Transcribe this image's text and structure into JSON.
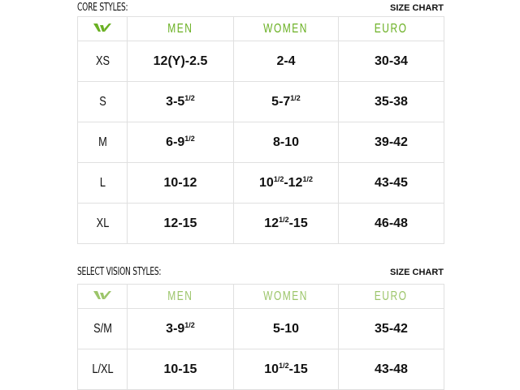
{
  "brand": {
    "logo": "W logo",
    "accent_color": "#6ab023"
  },
  "tables": [
    {
      "title": "CORE STYLES:",
      "chart_label": "SIZE CHART",
      "header_color": "#6ab023",
      "headers": [
        "MEN",
        "WOMEN",
        "EURO"
      ],
      "rows": [
        {
          "size": "XS",
          "men": [
            {
              "t": "12(Y)-2.5"
            }
          ],
          "women": [
            {
              "t": "2-4"
            }
          ],
          "euro": [
            {
              "t": "30-34"
            }
          ]
        },
        {
          "size": "S",
          "men": [
            {
              "t": "3-5"
            },
            {
              "s": "1/2"
            }
          ],
          "women": [
            {
              "t": "5-7"
            },
            {
              "s": "1/2"
            }
          ],
          "euro": [
            {
              "t": "35-38"
            }
          ]
        },
        {
          "size": "M",
          "men": [
            {
              "t": "6-9"
            },
            {
              "s": "1/2"
            }
          ],
          "women": [
            {
              "t": "8-10"
            }
          ],
          "euro": [
            {
              "t": "39-42"
            }
          ]
        },
        {
          "size": "L",
          "men": [
            {
              "t": "10-12"
            }
          ],
          "women": [
            {
              "t": "10"
            },
            {
              "s": "1/2"
            },
            {
              "t": "-12"
            },
            {
              "s": "1/2"
            }
          ],
          "euro": [
            {
              "t": "43-45"
            }
          ]
        },
        {
          "size": "XL",
          "men": [
            {
              "t": "12-15"
            }
          ],
          "women": [
            {
              "t": "12"
            },
            {
              "s": "1/2"
            },
            {
              "t": "-15"
            }
          ],
          "euro": [
            {
              "t": "46-48"
            }
          ]
        }
      ]
    },
    {
      "title": "SELECT VISION STYLES:",
      "chart_label": "SIZE CHART",
      "header_color": "#9cc56a",
      "headers": [
        "MEN",
        "WOMEN",
        "EURO"
      ],
      "rows": [
        {
          "size": "S/M",
          "men": [
            {
              "t": "3-9"
            },
            {
              "s": "1/2"
            }
          ],
          "women": [
            {
              "t": "5-10"
            }
          ],
          "euro": [
            {
              "t": "35-42"
            }
          ]
        },
        {
          "size": "L/XL",
          "men": [
            {
              "t": "10-15"
            }
          ],
          "women": [
            {
              "t": "10"
            },
            {
              "s": "1/2"
            },
            {
              "t": "-15"
            }
          ],
          "euro": [
            {
              "t": "43-48"
            }
          ]
        }
      ]
    }
  ]
}
